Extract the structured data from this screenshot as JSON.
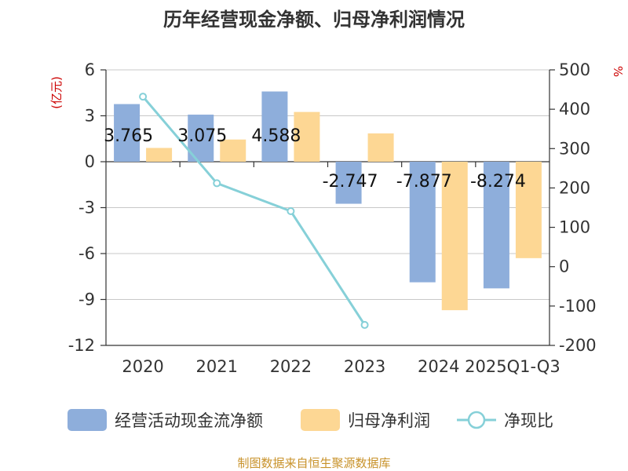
{
  "chart_data": {
    "type": "bar",
    "title": "历年经营现金净额、归母净利润情况",
    "categories": [
      "2020",
      "2021",
      "2022",
      "2023",
      "2024",
      "2025Q1-Q3"
    ],
    "series": [
      {
        "name": "经营活动现金流净额",
        "type": "bar",
        "axis": "left",
        "color": "#8eaedb",
        "values": [
          3.765,
          3.075,
          4.588,
          -2.747,
          -7.877,
          -8.274
        ],
        "labels": [
          "3.765",
          "3.075",
          "4.588",
          "-2.747",
          "-7.877",
          "-8.274"
        ]
      },
      {
        "name": "归母净利润",
        "type": "bar",
        "axis": "left",
        "color": "#fdd794",
        "values": [
          0.9,
          1.45,
          3.25,
          1.85,
          -9.7,
          -6.3
        ]
      },
      {
        "name": "净现比",
        "type": "line",
        "axis": "right",
        "color": "#86d0d8",
        "values": [
          432,
          212,
          141,
          -148,
          null,
          null
        ]
      }
    ],
    "yleft": {
      "unit": "(亿元)",
      "ylim": [
        -12,
        6
      ],
      "ticks": [
        6,
        3,
        0,
        -3,
        -6,
        -9,
        -12
      ],
      "tick_labels": [
        "6",
        "3",
        "0",
        "-3",
        "-6",
        "-9",
        "-12"
      ]
    },
    "yright": {
      "unit": "%",
      "ylim": [
        -200,
        500
      ],
      "ticks": [
        500,
        400,
        300,
        200,
        100,
        0,
        -100,
        -200
      ],
      "tick_labels": [
        "500",
        "400",
        "300",
        "200",
        "100",
        "0",
        "-100",
        "-200"
      ]
    },
    "legend_position": "bottom",
    "source": "制图数据来自恒生聚源数据库"
  }
}
